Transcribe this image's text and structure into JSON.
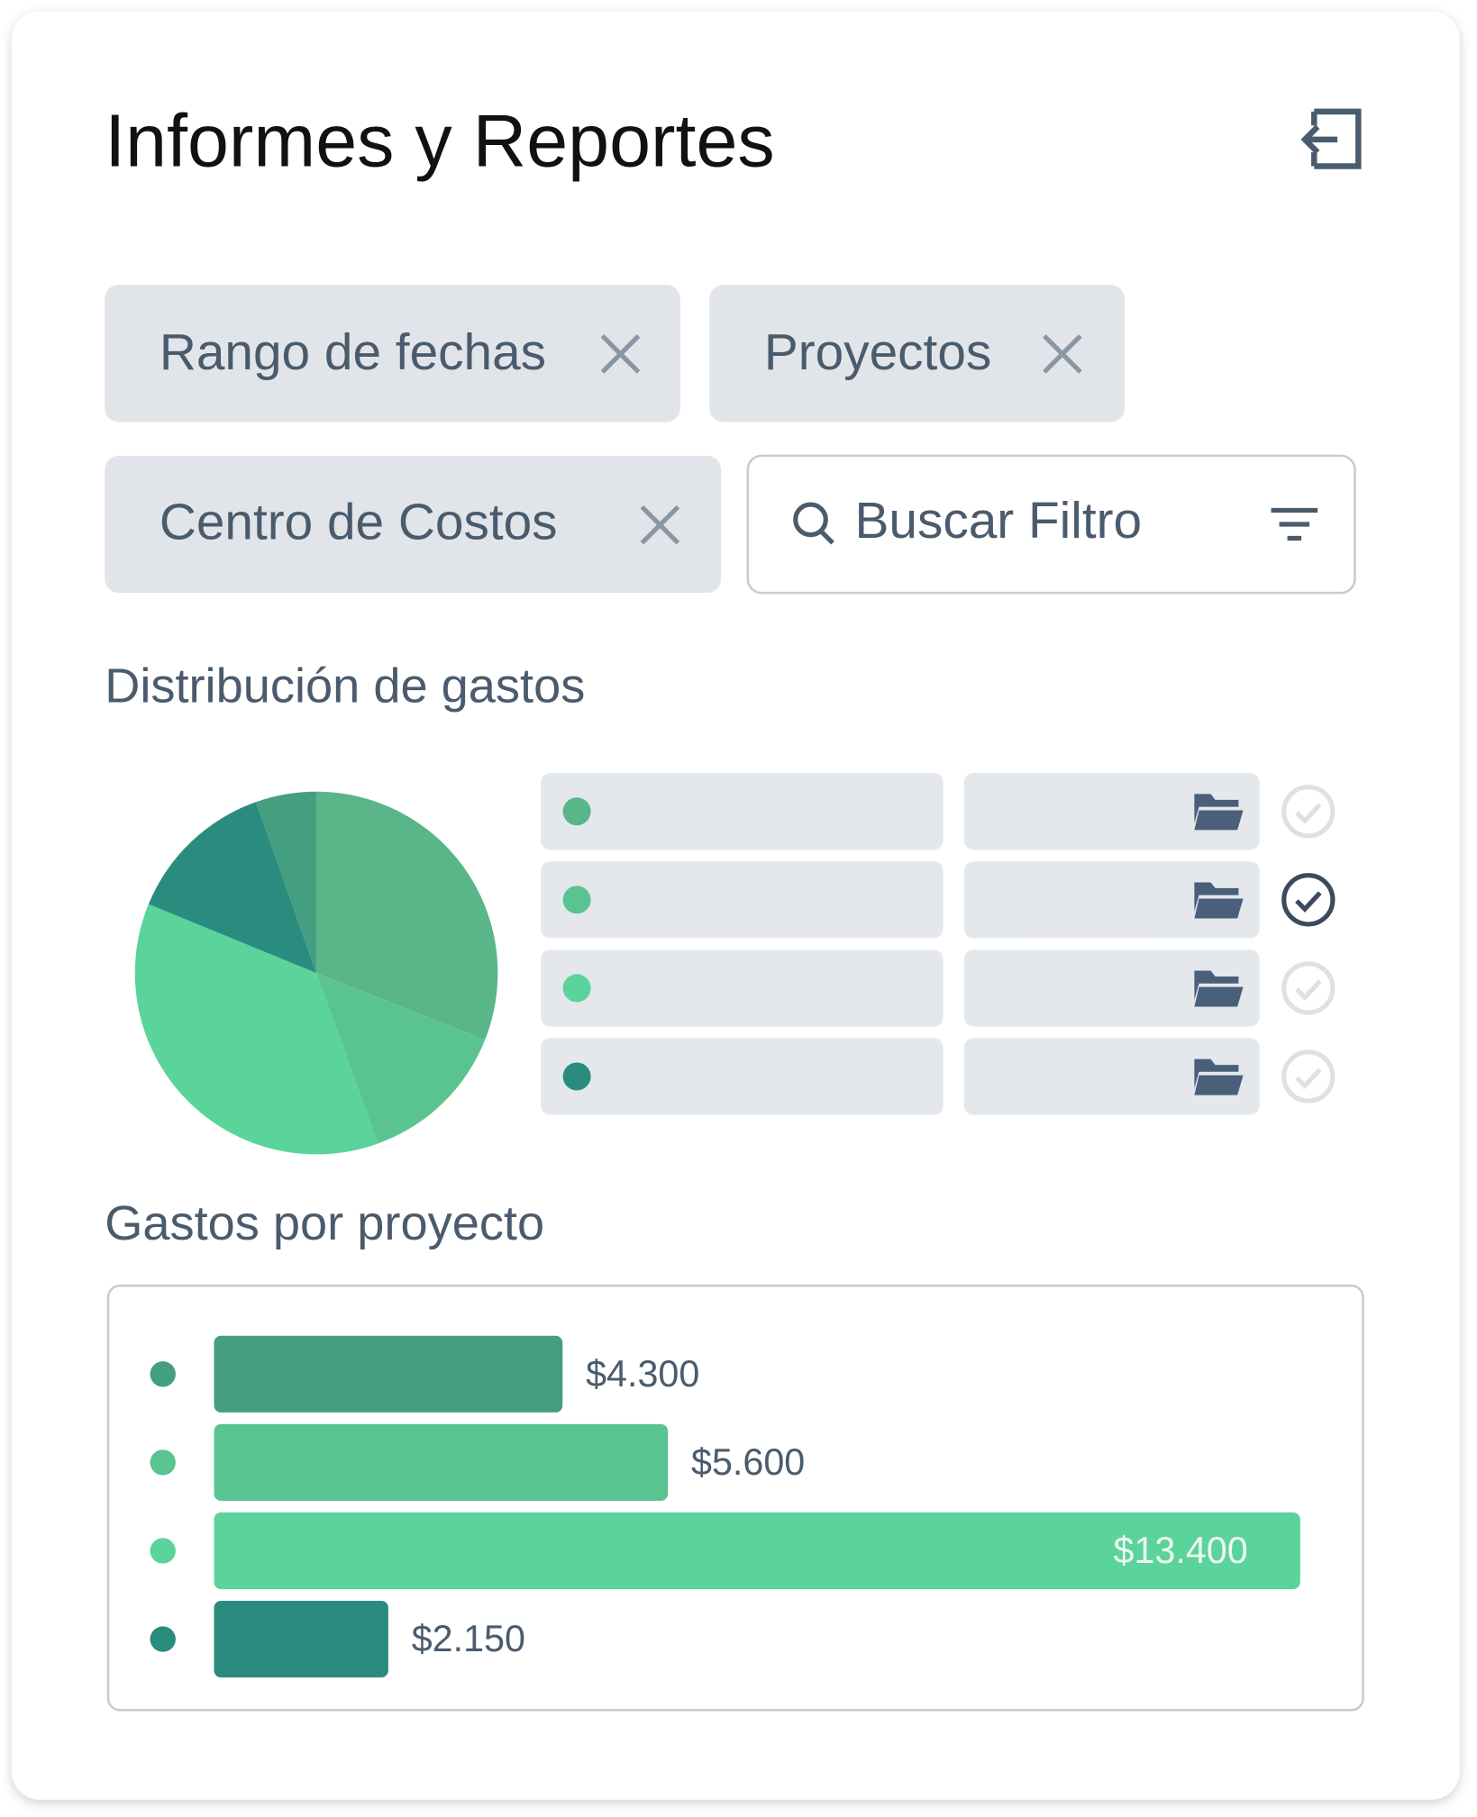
{
  "header": {
    "title": "Informes y Reportes"
  },
  "filters": [
    "Rango de fechas",
    "Proyectos",
    "Centro de Costos"
  ],
  "search": {
    "placeholder": "Buscar Filtro"
  },
  "chart_data": [
    {
      "type": "pie",
      "title": "Distribución de gastos",
      "values": [
        31,
        13.5,
        36.7,
        13.4,
        5.4
      ],
      "colors": [
        "#5ab589",
        "#5ac491",
        "#5ad49a",
        "#2a8c7e",
        "#449e80"
      ]
    },
    {
      "type": "bar",
      "orientation": "horizontal",
      "title": "Gastos por proyecto",
      "values": [
        4300,
        5600,
        13400,
        2150
      ],
      "value_labels": [
        "$4.300",
        "$5.600",
        "$13.400",
        "$2.150"
      ],
      "colors": [
        "#449e80",
        "#5ac491",
        "#5ad49a",
        "#2a8c7e"
      ]
    }
  ]
}
